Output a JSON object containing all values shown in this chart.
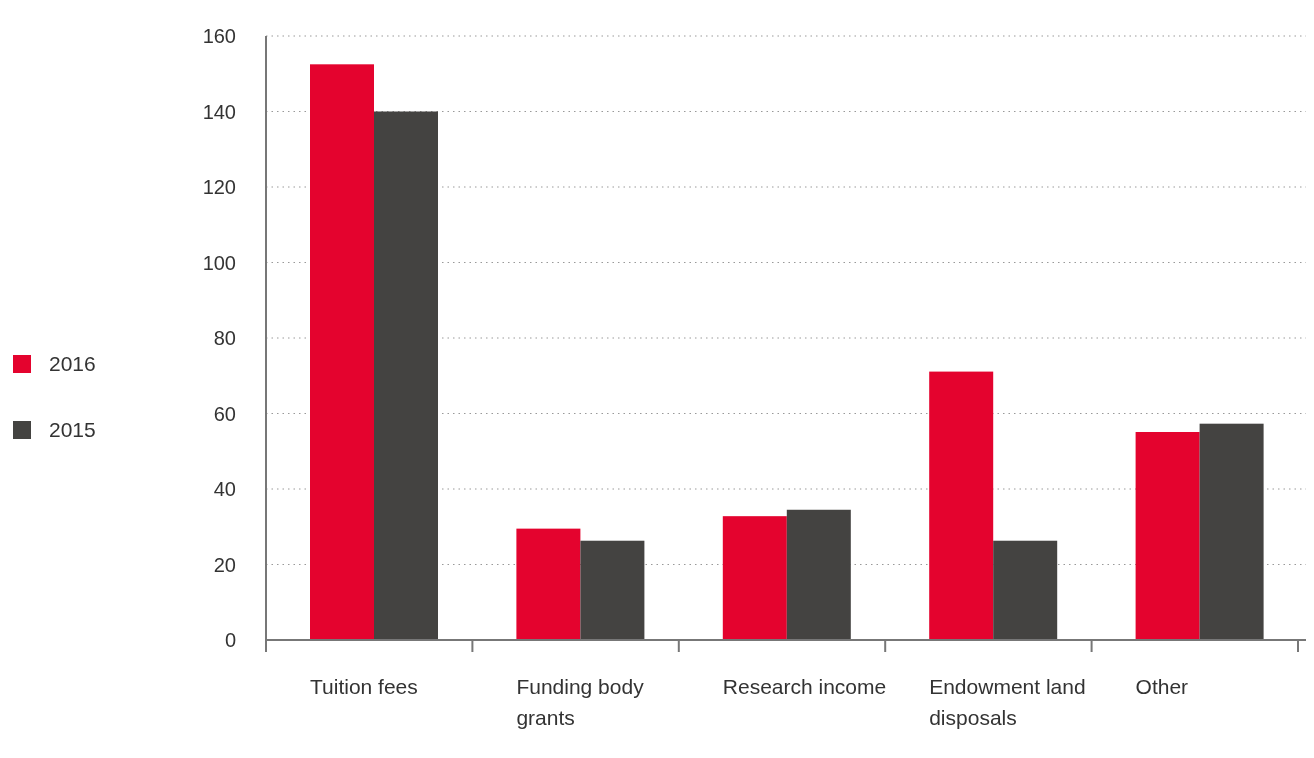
{
  "chart_data": {
    "type": "bar",
    "categories": [
      "Tuition fees",
      "Funding body grants",
      "Research income",
      "Endowment land disposals",
      "Other"
    ],
    "series": [
      {
        "name": "2016",
        "color": "#e4032e",
        "values": [
          152.5,
          29.5,
          32.8,
          71.1,
          55.1
        ]
      },
      {
        "name": "2015",
        "color": "#444341",
        "values": [
          140,
          26.3,
          34.5,
          26.3,
          57.3
        ]
      }
    ],
    "ylim": [
      0,
      160
    ],
    "yticks": [
      0,
      20,
      40,
      60,
      80,
      100,
      120,
      140,
      160
    ],
    "grid": "y",
    "legend": "left"
  }
}
